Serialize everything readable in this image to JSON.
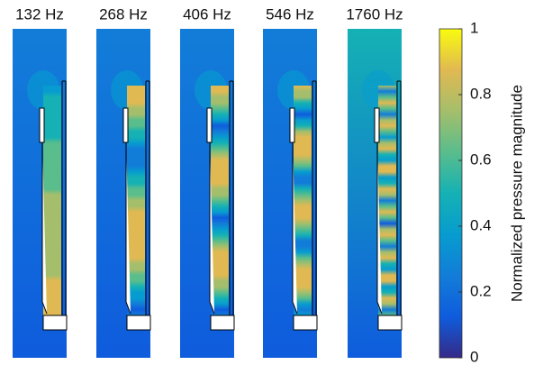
{
  "chart_data": {
    "type": "heatmap",
    "panels": [
      {
        "title": "132 Hz"
      },
      {
        "title": "268 Hz"
      },
      {
        "title": "406 Hz"
      },
      {
        "title": "546 Hz"
      },
      {
        "title": "1760 Hz"
      }
    ],
    "colorbar": {
      "label": "Normalized pressure magnitude",
      "lim": [
        0,
        1
      ],
      "ticks": [
        0,
        0.2,
        0.4,
        0.6,
        0.8,
        1
      ],
      "colormap": [
        "#352a87",
        "#0f5cdd",
        "#127dd8",
        "#079ccf",
        "#15b1b4",
        "#59bd8c",
        "#a5be6b",
        "#e1b952",
        "#f9fb0e"
      ]
    }
  }
}
